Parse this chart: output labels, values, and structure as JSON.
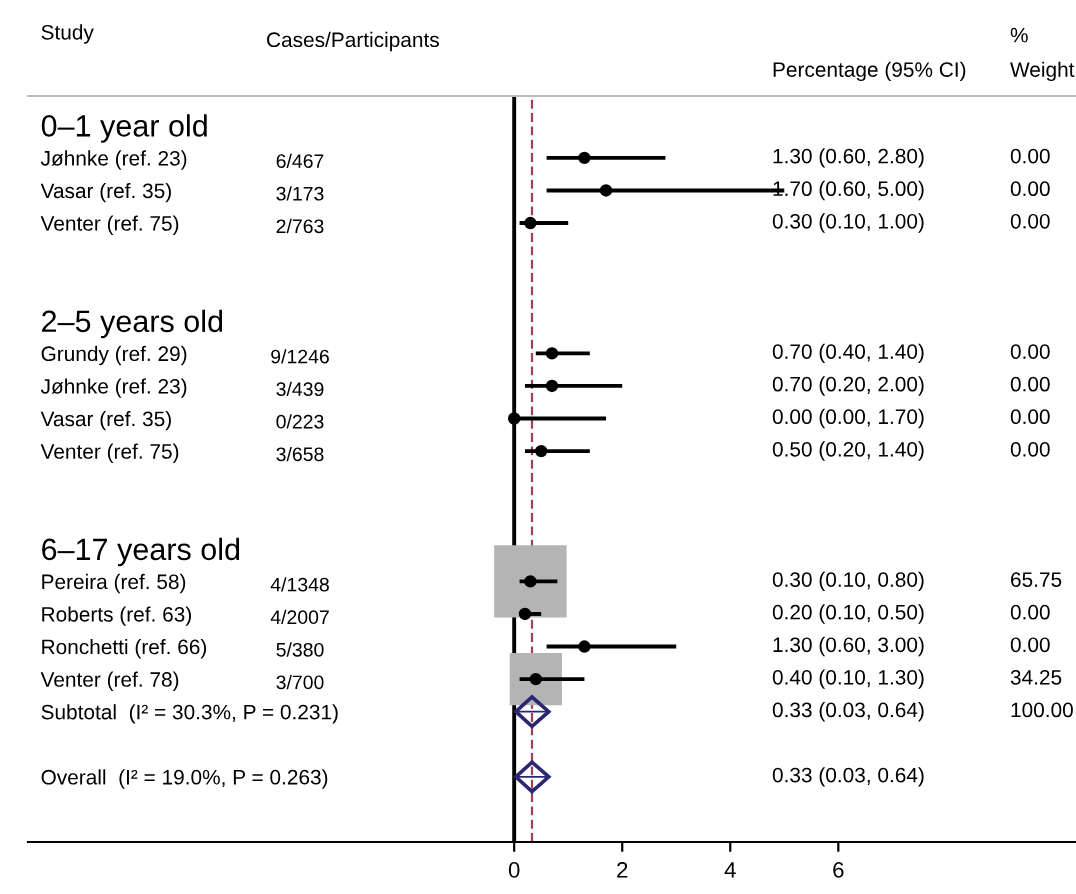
{
  "chart_data": {
    "type": "scatter",
    "orientation": "horizontal",
    "ylabel": "Study",
    "categories": [
      "0–1 year old",
      "Jøhnke (ref. 23)",
      "Vasar (ref. 35)",
      "Venter (ref. 75)",
      null,
      null,
      "2–5 years old",
      "Grundy (ref. 29)",
      "Jøhnke (ref. 23)",
      "Vasar (ref. 35)",
      "Venter (ref. 75)",
      null,
      null,
      "6–17 years old",
      "Pereira (ref. 58)",
      "Roberts (ref. 63)",
      "Ronchetti (ref. 66)",
      "Venter (ref. 78)",
      "Subtotal  (I² = 30.3%, P = 0.231)",
      null,
      "Overall  (I² = 19.0%, P = 0.263)"
    ],
    "series": [
      {
        "type": "bubble",
        "marker": "square",
        "color": "#b4b4b4",
        "values": [
          null,
          null,
          null,
          null,
          null,
          null,
          null,
          null,
          null,
          null,
          null,
          null,
          null,
          null,
          0.3,
          null,
          null,
          0.4,
          null,
          null,
          null
        ],
        "sizes": [
          null,
          null,
          null,
          null,
          null,
          null,
          null,
          null,
          null,
          null,
          null,
          null,
          null,
          null,
          1,
          null,
          null,
          0.52,
          null,
          null,
          null
        ]
      },
      {
        "marker": "circle",
        "color": "#000000",
        "values": [
          null,
          1.3,
          1.7,
          0.3,
          null,
          null,
          null,
          0.7,
          0.7,
          0.0,
          0.5,
          null,
          null,
          null,
          0.3,
          0.2,
          1.3,
          0.4,
          null,
          null,
          null
        ],
        "errors": [
          null,
          [
            0.6,
            2.8
          ],
          [
            0.6,
            5.0
          ],
          [
            0.1,
            1.0
          ],
          null,
          null,
          null,
          [
            0.4,
            1.4
          ],
          [
            0.2,
            2.0
          ],
          [
            0.0,
            1.7
          ],
          [
            0.2,
            1.4
          ],
          null,
          null,
          null,
          [
            0.1,
            0.8
          ],
          [
            0.1,
            0.5
          ],
          [
            0.6,
            3.0
          ],
          [
            0.1,
            1.3
          ],
          null,
          null,
          null
        ]
      },
      {
        "marker": "diamond",
        "color": "#2b2670",
        "values": [
          null,
          null,
          null,
          null,
          null,
          null,
          null,
          null,
          null,
          null,
          null,
          null,
          null,
          null,
          null,
          null,
          null,
          null,
          0.33,
          null,
          0.33
        ],
        "errors": [
          null,
          null,
          null,
          null,
          null,
          null,
          null,
          null,
          null,
          null,
          null,
          null,
          null,
          null,
          null,
          null,
          null,
          null,
          [
            0.03,
            0.64
          ],
          null,
          [
            0.03,
            0.64
          ]
        ]
      }
    ],
    "xlim": [
      -9.0,
      10.4
    ],
    "xticks": [
      0,
      2,
      4,
      6
    ],
    "ref_lines": [
      {
        "axis": "x",
        "value": 0,
        "color": "#000000",
        "line_style": "solid"
      },
      {
        "axis": "x",
        "value": 0.33,
        "color": "#a0405a",
        "line_style": "dashed"
      }
    ],
    "annotations": [
      "Cases/Participants",
      "Percentage (95% CI)",
      "%\nWeight",
      "6/467",
      "3/173",
      "2/763",
      "9/1246",
      "3/439",
      "0/223",
      "3/658",
      "4/1348",
      "4/2007",
      "5/380",
      "3/700",
      "1.30 (0.60, 2.80)",
      "1.70 (0.60, 5.00)",
      "0.30 (0.10, 1.00)",
      "0.70 (0.40, 1.40)",
      "0.70 (0.20, 2.00)",
      "0.00 (0.00, 1.70)",
      "0.50 (0.20, 1.40)",
      "0.30 (0.10, 0.80)",
      "0.20 (0.10, 0.50)",
      "1.30 (0.60, 3.00)",
      "0.40 (0.10, 1.30)",
      "0.33 (0.03, 0.64)",
      "0.33 (0.03, 0.64)",
      "0.00",
      "0.00",
      "0.00",
      "0.00",
      "0.00",
      "0.00",
      "0.00",
      "65.75",
      "0.00",
      "0.00",
      "34.25",
      "100.00"
    ],
    "grid": false,
    "legend": false
  }
}
